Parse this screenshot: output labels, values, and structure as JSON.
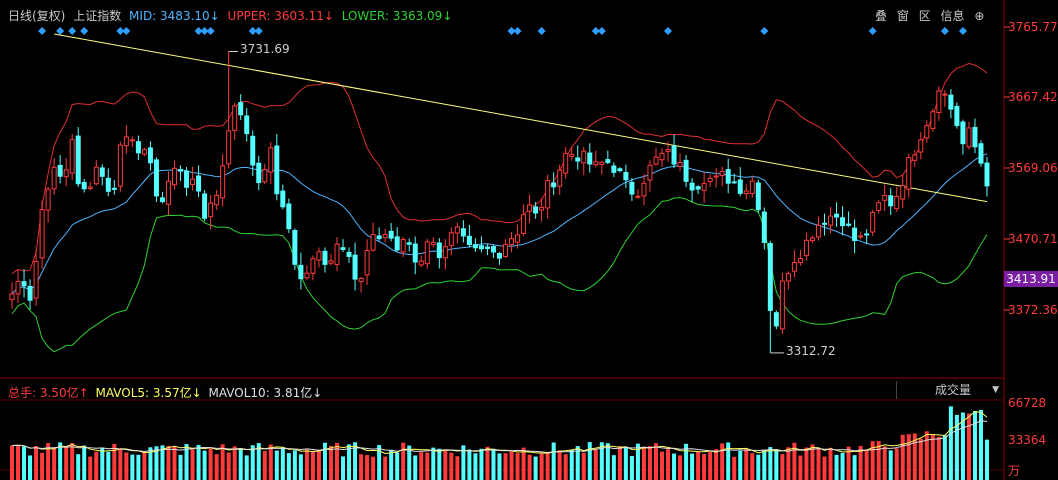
{
  "header": {
    "period": "日线(复权)",
    "index_name": "上证指数",
    "mid": "MID: 3483.10↓",
    "upper": "UPPER: 3603.11↓",
    "lower": "LOWER: 3363.09↓"
  },
  "toolbar": {
    "overlay": "叠",
    "window": "窗",
    "interval": "区",
    "info": "信息",
    "zoom": "⊕"
  },
  "volume_header": {
    "total": "总手: 3.50亿↑",
    "mavol5": "MAVOL5: 3.57亿↓",
    "mavol10": "MAVOL10: 3.81亿↓"
  },
  "volume_selector": {
    "label": "成交量",
    "arrow": "▼"
  },
  "price_axis": [
    "3765.77",
    "3667.42",
    "3569.06",
    "3470.71",
    "3372.36"
  ],
  "current_price": "3413.91",
  "volume_axis": [
    "66728",
    "33364"
  ],
  "volume_unit": "万",
  "annotations": {
    "high": "3731.69",
    "low": "3312.72"
  },
  "colors": {
    "up": "#ff3b3b",
    "down": "#54ffff",
    "mid": "#4fb4ff",
    "upper": "#e03030",
    "lower": "#2fd12f",
    "trend": "#ffff80",
    "marker": "#2f9fff",
    "current_bg": "#7a1fa2"
  },
  "chart_data": {
    "type": "candlestick",
    "count": 163,
    "ylim": [
      3300,
      3780
    ],
    "series": [
      {
        "name": "MID",
        "value_last": 3483.1
      },
      {
        "name": "UPPER",
        "value_last": 3603.11
      },
      {
        "name": "LOWER",
        "value_last": 3363.09
      }
    ],
    "high": 3731.69,
    "low": 3312.72,
    "current": 3413.91,
    "volume_total_yi": 3.5,
    "mavol5_yi": 3.57,
    "mavol10_yi": 3.81,
    "volume_ylim_wan": [
      0,
      70000
    ],
    "anchors": [
      [
        0,
        3395
      ],
      [
        5,
        3410
      ],
      [
        12,
        3415
      ],
      [
        20,
        3385
      ],
      [
        25,
        3450
      ],
      [
        32,
        3530
      ],
      [
        40,
        3565
      ],
      [
        50,
        3555
      ],
      [
        55,
        3570
      ],
      [
        60,
        3650
      ],
      [
        62,
        3560
      ],
      [
        70,
        3530
      ],
      [
        80,
        3555
      ],
      [
        88,
        3580
      ],
      [
        100,
        3520
      ],
      [
        110,
        3605
      ],
      [
        120,
        3620
      ],
      [
        130,
        3595
      ],
      [
        138,
        3575
      ],
      [
        148,
        3530
      ],
      [
        155,
        3520
      ],
      [
        163,
        3575
      ],
      [
        168,
        3580
      ],
      [
        175,
        3540
      ],
      [
        182,
        3550
      ],
      [
        187,
        3555
      ],
      [
        190,
        3530
      ],
      [
        196,
        3500
      ],
      [
        205,
        3520
      ],
      [
        215,
        3595
      ],
      [
        225,
        3660
      ],
      [
        232,
        3650
      ],
      [
        240,
        3590
      ],
      [
        250,
        3550
      ],
      [
        260,
        3600
      ],
      [
        270,
        3520
      ],
      [
        280,
        3485
      ],
      [
        290,
        3410
      ],
      [
        300,
        3430
      ],
      [
        310,
        3450
      ],
      [
        320,
        3440
      ],
      [
        330,
        3470
      ],
      [
        340,
        3460
      ],
      [
        350,
        3395
      ],
      [
        360,
        3460
      ],
      [
        370,
        3475
      ],
      [
        380,
        3480
      ],
      [
        390,
        3455
      ],
      [
        400,
        3470
      ],
      [
        410,
        3430
      ],
      [
        420,
        3475
      ],
      [
        430,
        3450
      ],
      [
        440,
        3470
      ],
      [
        450,
        3480
      ],
      [
        460,
        3455
      ],
      [
        470,
        3450
      ],
      [
        480,
        3455
      ],
      [
        490,
        3450
      ],
      [
        500,
        3470
      ],
      [
        510,
        3480
      ],
      [
        520,
        3520
      ],
      [
        530,
        3500
      ],
      [
        540,
        3540
      ],
      [
        550,
        3560
      ],
      [
        560,
        3590
      ],
      [
        570,
        3590
      ],
      [
        580,
        3580
      ],
      [
        590,
        3570
      ],
      [
        600,
        3580
      ],
      [
        610,
        3570
      ],
      [
        620,
        3545
      ],
      [
        630,
        3535
      ],
      [
        640,
        3560
      ],
      [
        650,
        3580
      ],
      [
        660,
        3590
      ],
      [
        670,
        3580
      ],
      [
        680,
        3560
      ],
      [
        690,
        3545
      ],
      [
        700,
        3560
      ],
      [
        710,
        3550
      ],
      [
        720,
        3560
      ],
      [
        730,
        3550
      ],
      [
        740,
        3540
      ],
      [
        750,
        3555
      ],
      [
        760,
        3470
      ],
      [
        765,
        3390
      ],
      [
        770,
        3335
      ],
      [
        775,
        3380
      ],
      [
        780,
        3420
      ],
      [
        790,
        3445
      ],
      [
        800,
        3460
      ],
      [
        810,
        3485
      ],
      [
        820,
        3500
      ],
      [
        830,
        3505
      ],
      [
        840,
        3500
      ],
      [
        850,
        3470
      ],
      [
        860,
        3470
      ],
      [
        870,
        3500
      ],
      [
        880,
        3530
      ],
      [
        890,
        3520
      ],
      [
        900,
        3555
      ],
      [
        910,
        3590
      ],
      [
        920,
        3625
      ],
      [
        930,
        3650
      ],
      [
        935,
        3690
      ],
      [
        940,
        3680
      ],
      [
        945,
        3660
      ],
      [
        950,
        3650
      ],
      [
        955,
        3630
      ],
      [
        960,
        3600
      ],
      [
        965,
        3620
      ],
      [
        970,
        3610
      ],
      [
        975,
        3590
      ],
      [
        980,
        3575
      ],
      [
        985,
        3545
      ]
    ]
  }
}
